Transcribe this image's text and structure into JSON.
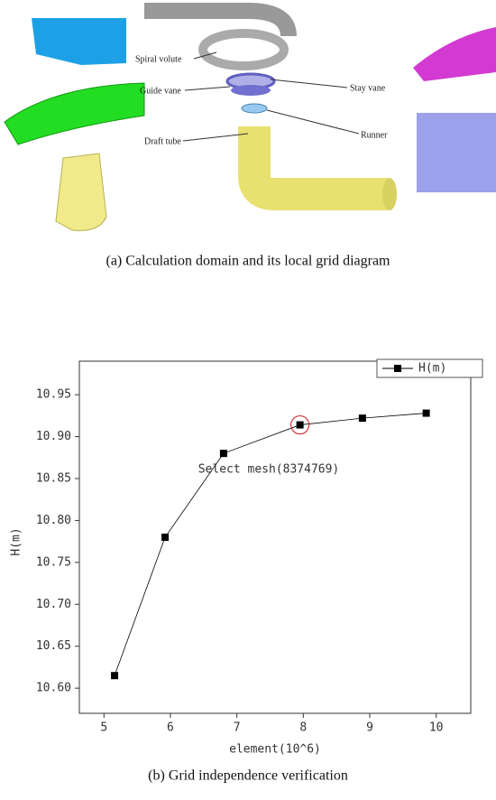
{
  "illustration": {
    "labels": [
      "Spiral volute",
      "Stay vane",
      "Guide vane",
      "Runner",
      "Draft tube"
    ],
    "caption": "(a) Calculation domain and its local grid diagram"
  },
  "chart_data": {
    "type": "line",
    "caption": "(b) Grid independence verification",
    "xlabel": "element(10^6)",
    "ylabel": "H(m)",
    "x": [
      5.16,
      5.92,
      6.8,
      7.95,
      8.89,
      9.85
    ],
    "series": [
      {
        "name": "H(m)",
        "color": "#000000",
        "values": [
          10.615,
          10.78,
          10.88,
          10.914,
          10.922,
          10.928
        ]
      }
    ],
    "annotation": "Select mesh(8374769)",
    "xlim": [
      4.63,
      10.52
    ],
    "xticks": [
      5,
      6,
      7,
      8,
      9,
      10
    ],
    "ylim": [
      10.57,
      10.99
    ],
    "yticks": [
      {
        "value": 10.6,
        "label": "10.60"
      },
      10.65,
      {
        "value": 10.7,
        "label": "10.70"
      },
      10.75,
      {
        "value": 10.8,
        "label": "10.80"
      },
      10.85,
      {
        "value": 10.9,
        "label": "10.90"
      },
      10.95
    ],
    "legend": "upper right"
  }
}
